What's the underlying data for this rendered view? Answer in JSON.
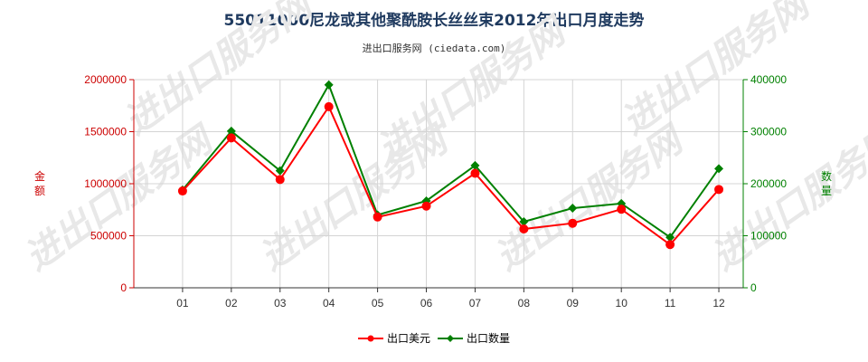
{
  "chart_data": {
    "type": "line",
    "title": "55011000尼龙或其他聚酰胺长丝丝束2012年出口月度走势",
    "subtitle": "进出口服务网 (ciedata.com)",
    "categories": [
      "01",
      "02",
      "03",
      "04",
      "05",
      "06",
      "07",
      "08",
      "09",
      "10",
      "11",
      "12"
    ],
    "y_left": {
      "label": "金额",
      "ticks": [
        "0",
        "500000",
        "1000000",
        "1500000",
        "2000000"
      ],
      "lim": [
        0,
        2000000
      ],
      "color": "#cc0000"
    },
    "y_right": {
      "label": "数量",
      "ticks": [
        "0",
        "100000",
        "200000",
        "300000",
        "400000"
      ],
      "lim": [
        0,
        400000
      ],
      "color": "#008000"
    },
    "series": [
      {
        "name": "出口美元",
        "axis": "left",
        "color": "#ff0000",
        "values": [
          930000,
          1440000,
          1040000,
          1740000,
          680000,
          785000,
          1100000,
          565000,
          620000,
          755000,
          415000,
          945000
        ]
      },
      {
        "name": "出口数量",
        "axis": "right",
        "color": "#008000",
        "values": [
          188000,
          301000,
          225000,
          390000,
          140000,
          167000,
          235000,
          127000,
          153000,
          162000,
          97000,
          229000
        ]
      }
    ],
    "legend": "bottom-center",
    "grid": true,
    "watermark": "进出口服务网"
  }
}
